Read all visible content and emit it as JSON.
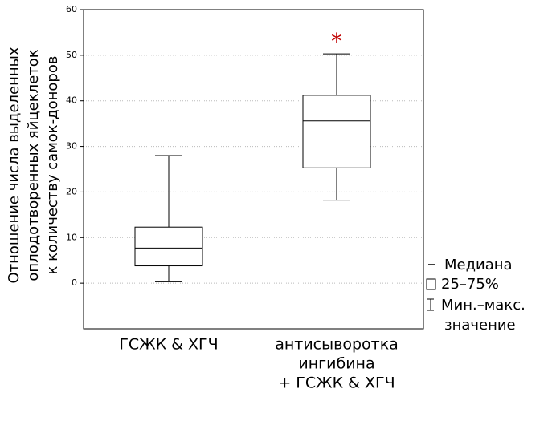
{
  "chart_data": {
    "type": "box",
    "y_label": [
      "Отношение числа выделенных",
      "оплодотворенных яйцеклеток",
      "к количеству самок-доноров"
    ],
    "categories": [
      [
        "ГСЖК & ХГЧ"
      ],
      [
        "антисыворотка",
        "ингибина",
        "+ ГСЖК & ХГЧ"
      ]
    ],
    "boxes": [
      {
        "min": 0.3,
        "q1": 3.8,
        "median": 7.7,
        "q3": 12.3,
        "max": 28
      },
      {
        "min": 18.2,
        "q1": 25.3,
        "median": 35.6,
        "q3": 41.2,
        "max": 50.3
      }
    ],
    "annotation": "*",
    "annotation_color": "#c00000",
    "color": "#000000",
    "ylim": [
      -10,
      60
    ],
    "yticks": [
      0,
      10,
      20,
      30,
      40,
      50,
      60
    ],
    "grid": true,
    "legend": {
      "median": "Медиана",
      "box": "25–75%",
      "whisker": [
        "Мин.–макс.",
        "значение"
      ]
    }
  }
}
